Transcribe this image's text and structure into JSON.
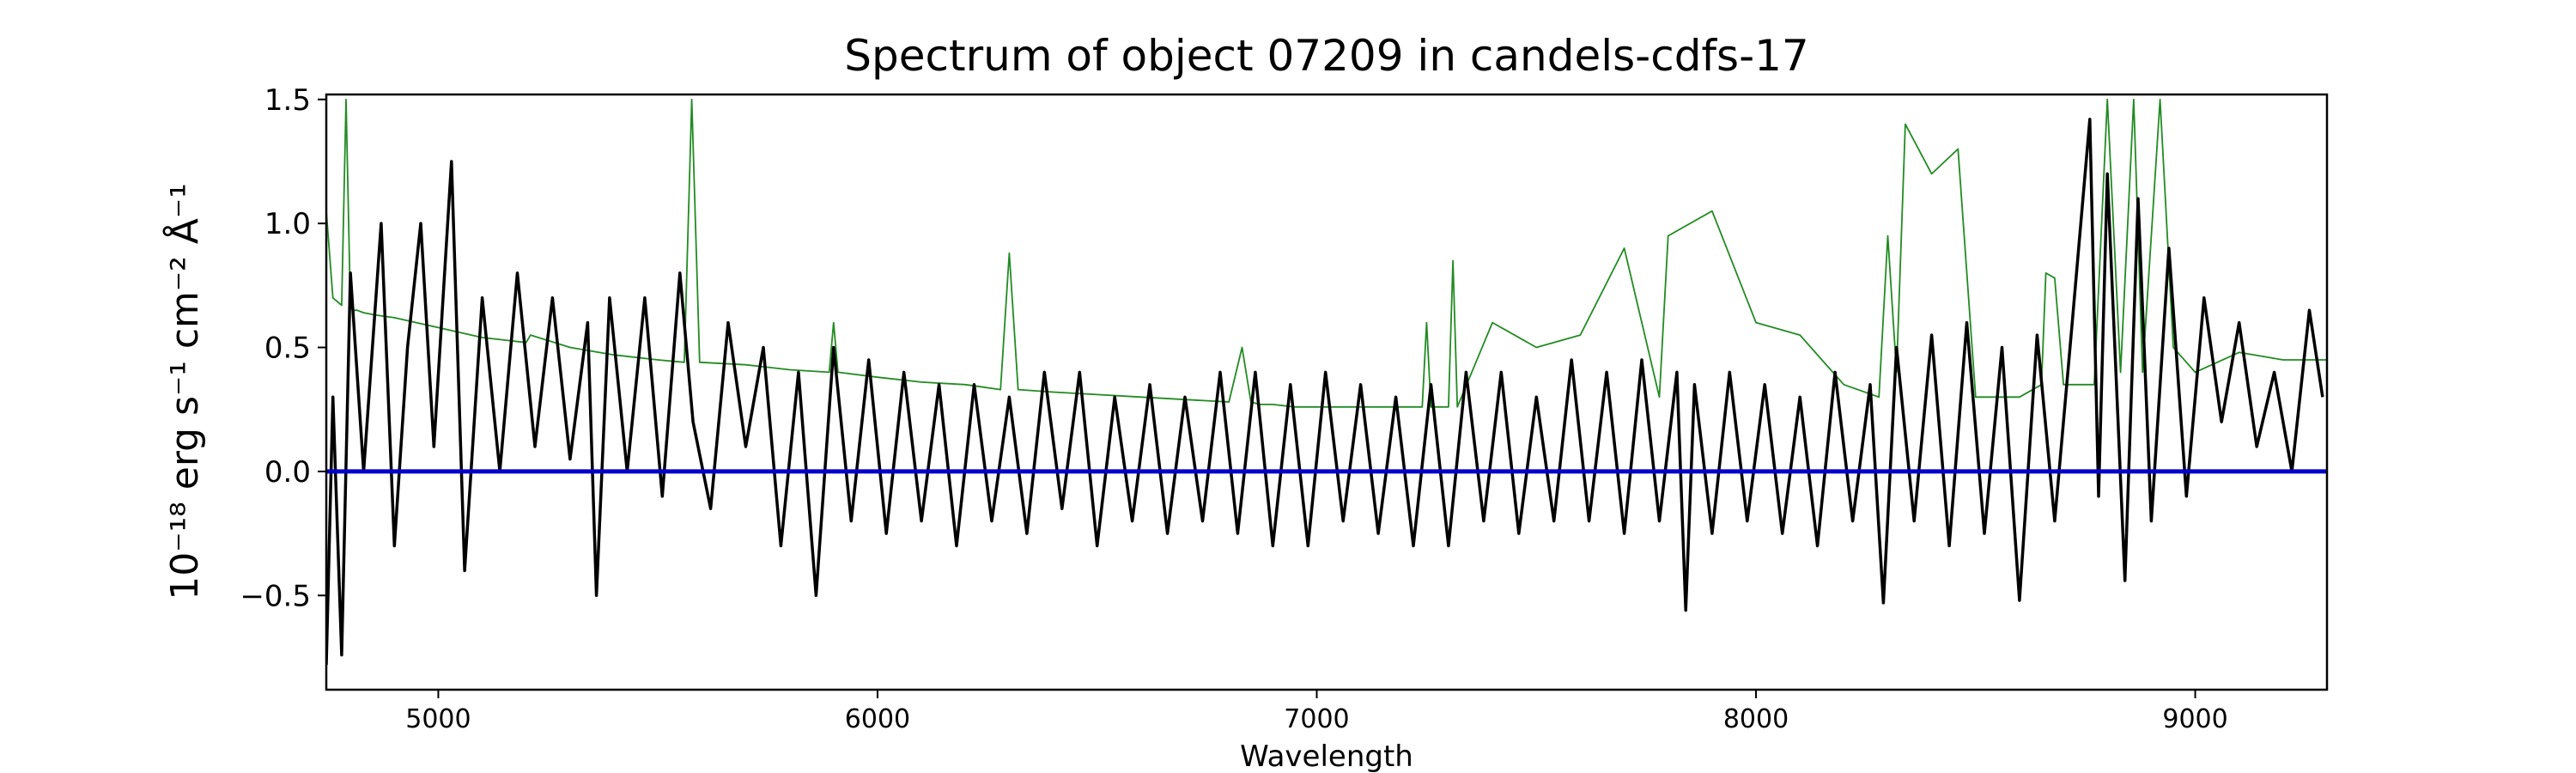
{
  "chart_data": {
    "type": "line",
    "title": "Spectrum of object 07209 in candels-cdfs-17",
    "xlabel": "Wavelength",
    "ylabel": "10⁻¹⁸ erg s⁻¹ cm⁻² Å⁻¹",
    "xlim": [
      4745,
      9300
    ],
    "ylim": [
      -0.88,
      1.52
    ],
    "xticks": [
      5000,
      6000,
      7000,
      8000,
      9000
    ],
    "xtick_labels": [
      "5000",
      "6000",
      "7000",
      "8000",
      "9000"
    ],
    "yticks": [
      -0.5,
      0.0,
      0.5,
      1.0,
      1.5
    ],
    "ytick_labels": [
      "−0.5",
      "0.0",
      "0.5",
      "1.0",
      "1.5"
    ],
    "grid": false,
    "series": [
      {
        "role": "error",
        "color": "#228b22",
        "x": [
          4745,
          4760,
          4780,
          4790,
          4800,
          4808,
          4815,
          4830,
          4860,
          4900,
          5000,
          5100,
          5150,
          5200,
          5210,
          5300,
          5400,
          5500,
          5560,
          5577,
          5595,
          5700,
          5800,
          5890,
          5900,
          5910,
          6000,
          6100,
          6200,
          6280,
          6300,
          6320,
          6400,
          6500,
          6600,
          6700,
          6800,
          6830,
          6850,
          6870,
          6900,
          6950,
          7000,
          7100,
          7200,
          7240,
          7250,
          7260,
          7300,
          7310,
          7320,
          7400,
          7500,
          7600,
          7700,
          7780,
          7800,
          7900,
          8000,
          8100,
          8200,
          8280,
          8300,
          8320,
          8340,
          8400,
          8460,
          8500,
          8600,
          8650,
          8660,
          8680,
          8700,
          8770,
          8800,
          8830,
          8860,
          8880,
          8920,
          8950,
          9000,
          9100,
          9200,
          9300
        ],
        "y": [
          1.05,
          0.7,
          0.67,
          1.5,
          0.66,
          0.65,
          0.65,
          0.64,
          0.63,
          0.62,
          0.58,
          0.54,
          0.53,
          0.52,
          0.55,
          0.5,
          0.47,
          0.45,
          0.44,
          1.5,
          0.44,
          0.43,
          0.41,
          0.4,
          0.6,
          0.4,
          0.38,
          0.36,
          0.35,
          0.33,
          0.88,
          0.33,
          0.32,
          0.31,
          0.3,
          0.29,
          0.28,
          0.5,
          0.28,
          0.27,
          0.27,
          0.26,
          0.26,
          0.26,
          0.26,
          0.26,
          0.6,
          0.26,
          0.26,
          0.85,
          0.26,
          0.6,
          0.5,
          0.55,
          0.9,
          0.3,
          0.95,
          1.05,
          0.6,
          0.55,
          0.35,
          0.3,
          0.95,
          0.4,
          1.4,
          1.2,
          1.3,
          0.3,
          0.3,
          0.35,
          0.8,
          0.78,
          0.35,
          0.35,
          1.5,
          0.4,
          1.5,
          0.4,
          1.5,
          0.5,
          0.4,
          0.48,
          0.45,
          0.45
        ]
      },
      {
        "role": "flux",
        "color": "#000000",
        "x": [
          4745,
          4760,
          4780,
          4800,
          4830,
          4870,
          4900,
          4930,
          4960,
          4990,
          5030,
          5060,
          5100,
          5140,
          5180,
          5220,
          5260,
          5300,
          5340,
          5360,
          5390,
          5430,
          5470,
          5510,
          5550,
          5580,
          5620,
          5660,
          5700,
          5740,
          5780,
          5820,
          5860,
          5900,
          5940,
          5980,
          6020,
          6060,
          6100,
          6140,
          6180,
          6220,
          6260,
          6300,
          6340,
          6380,
          6420,
          6460,
          6500,
          6540,
          6580,
          6620,
          6660,
          6700,
          6740,
          6780,
          6820,
          6860,
          6900,
          6940,
          6980,
          7020,
          7060,
          7100,
          7140,
          7180,
          7220,
          7260,
          7300,
          7340,
          7380,
          7420,
          7460,
          7500,
          7540,
          7580,
          7620,
          7660,
          7700,
          7740,
          7780,
          7820,
          7840,
          7860,
          7900,
          7940,
          7980,
          8020,
          8060,
          8100,
          8140,
          8180,
          8220,
          8260,
          8290,
          8320,
          8360,
          8400,
          8440,
          8480,
          8520,
          8560,
          8600,
          8640,
          8680,
          8720,
          8760,
          8780,
          8800,
          8840,
          8870,
          8900,
          8940,
          8980,
          9020,
          9060,
          9100,
          9140,
          9180,
          9220,
          9260,
          9290
        ],
        "y": [
          -0.78,
          0.3,
          -0.74,
          0.8,
          0.0,
          1.0,
          -0.3,
          0.5,
          1.0,
          0.1,
          1.25,
          -0.4,
          0.7,
          0.0,
          0.8,
          0.1,
          0.7,
          0.05,
          0.6,
          -0.5,
          0.7,
          0.0,
          0.7,
          -0.1,
          0.8,
          0.2,
          -0.15,
          0.6,
          0.1,
          0.5,
          -0.3,
          0.4,
          -0.5,
          0.5,
          -0.2,
          0.45,
          -0.25,
          0.4,
          -0.2,
          0.35,
          -0.3,
          0.35,
          -0.2,
          0.3,
          -0.25,
          0.4,
          -0.15,
          0.4,
          -0.3,
          0.3,
          -0.2,
          0.35,
          -0.25,
          0.3,
          -0.2,
          0.4,
          -0.25,
          0.4,
          -0.3,
          0.35,
          -0.3,
          0.4,
          -0.2,
          0.35,
          -0.25,
          0.3,
          -0.3,
          0.35,
          -0.3,
          0.4,
          -0.2,
          0.4,
          -0.25,
          0.3,
          -0.2,
          0.45,
          -0.2,
          0.4,
          -0.25,
          0.45,
          -0.2,
          0.4,
          -0.56,
          0.35,
          -0.25,
          0.4,
          -0.2,
          0.35,
          -0.25,
          0.3,
          -0.3,
          0.4,
          -0.2,
          0.35,
          -0.53,
          0.5,
          -0.2,
          0.55,
          -0.3,
          0.6,
          -0.25,
          0.5,
          -0.52,
          0.55,
          -0.2,
          0.6,
          1.42,
          -0.1,
          1.2,
          -0.44,
          1.1,
          -0.2,
          0.9,
          -0.1,
          0.7,
          0.2,
          0.6,
          0.1,
          0.4,
          0.0,
          0.65,
          0.3
        ]
      },
      {
        "role": "zero",
        "color": "#0000cc",
        "x": [
          4745,
          9300
        ],
        "y": [
          0.0,
          0.0
        ]
      }
    ]
  }
}
